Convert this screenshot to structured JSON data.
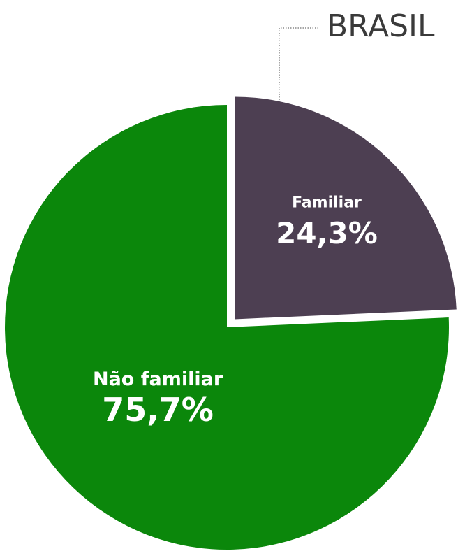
{
  "chart_data": {
    "type": "pie",
    "title": "BRASIL",
    "categories": [
      "Familiar",
      "Não familiar"
    ],
    "values": [
      24.3,
      75.7
    ],
    "value_labels": [
      "24,3%",
      "75,7%"
    ],
    "colors": [
      "#4d3f52",
      "#0b870b"
    ]
  }
}
